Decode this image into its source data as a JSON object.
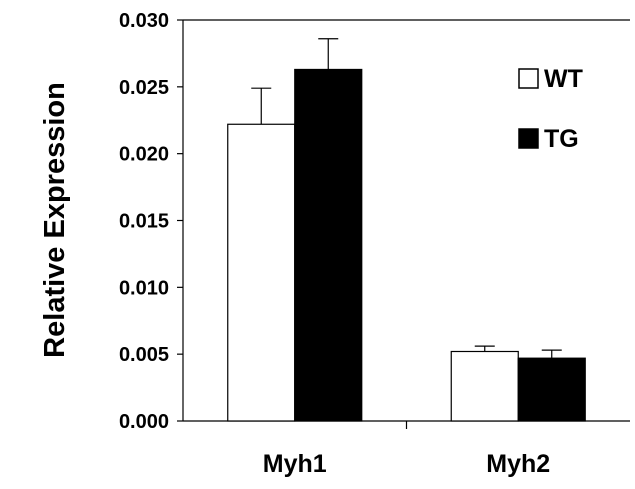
{
  "chart_data": {
    "type": "bar",
    "title": "",
    "xlabel": "",
    "ylabel": "Relative Expression",
    "categories": [
      "Myh1",
      "Myh2"
    ],
    "series": [
      {
        "name": "WT",
        "values": [
          0.0222,
          0.0052
        ],
        "errors": [
          0.0027,
          0.0004
        ],
        "color": "#ffffff",
        "stroke": "#000000"
      },
      {
        "name": "TG",
        "values": [
          0.0263,
          0.0047
        ],
        "errors": [
          0.0023,
          0.0006
        ],
        "color": "#000000",
        "stroke": "#000000"
      }
    ],
    "ylim": [
      0,
      0.03
    ],
    "yticks": [
      "0.000",
      "0.005",
      "0.010",
      "0.015",
      "0.020",
      "0.025",
      "0.030"
    ],
    "grid": false,
    "legend_position": "top-right",
    "error_bars": true
  }
}
